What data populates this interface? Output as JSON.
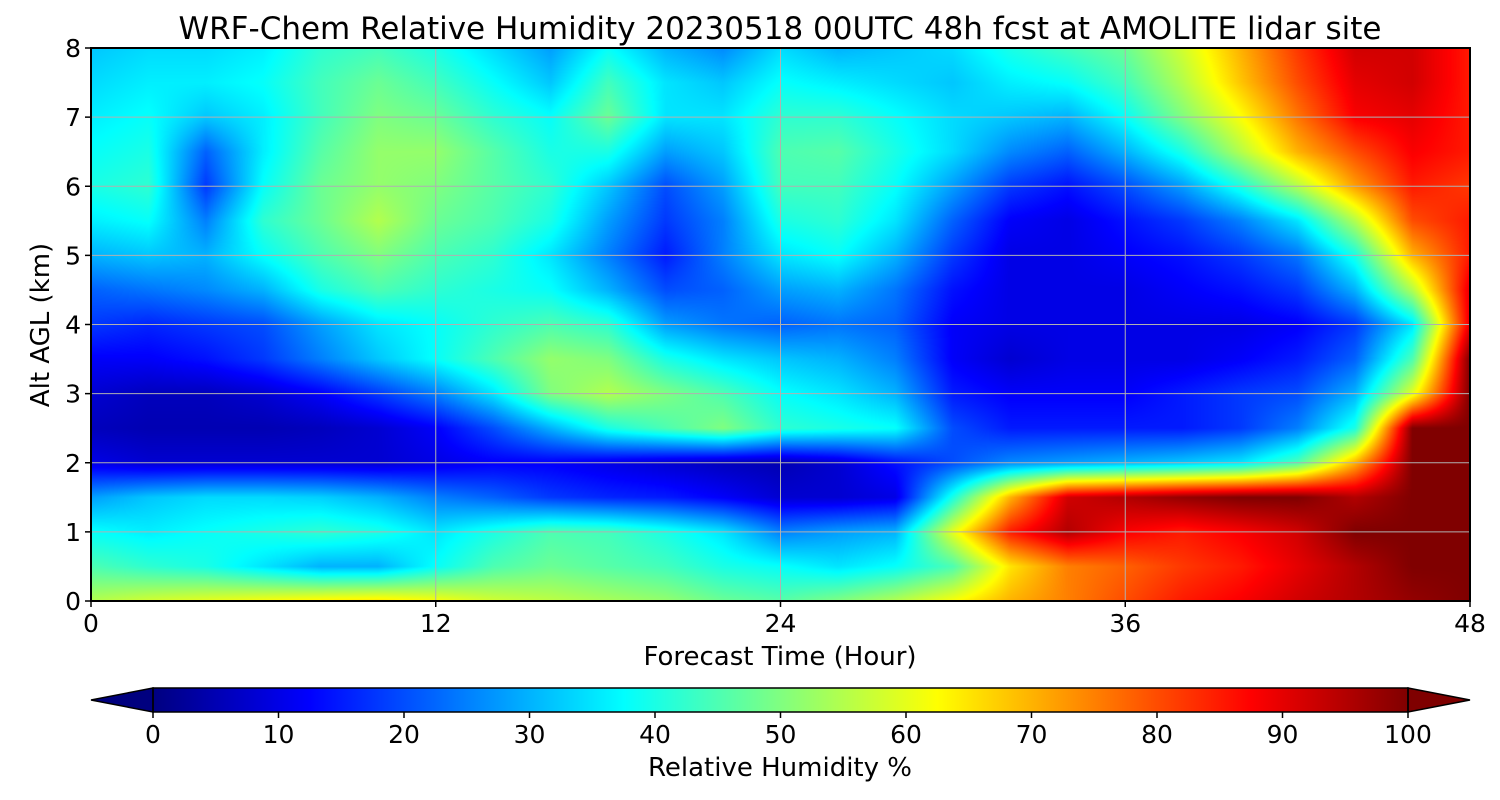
{
  "chart_data": {
    "type": "heatmap",
    "title": "WRF-Chem Relative Humidity 20230518 00UTC 48h fcst at AMOLITE lidar site",
    "xlabel": "Forecast Time (Hour)",
    "ylabel": "Alt AGL (km)",
    "xlim": [
      0,
      48
    ],
    "ylim": [
      0,
      8
    ],
    "x_ticks": [
      0,
      12,
      24,
      36,
      48
    ],
    "y_ticks": [
      0,
      1,
      2,
      3,
      4,
      5,
      6,
      7,
      8
    ],
    "grid": true,
    "colormap": "jet",
    "colorbar": {
      "label": "Relative Humidity %",
      "ticks": [
        0,
        10,
        20,
        30,
        40,
        50,
        60,
        70,
        80,
        90,
        100
      ],
      "range": [
        0,
        100
      ],
      "extend": "both",
      "orientation": "horizontal"
    },
    "x": [
      0,
      2,
      4,
      6,
      8,
      10,
      12,
      14,
      16,
      18,
      20,
      22,
      24,
      26,
      28,
      30,
      32,
      34,
      36,
      38,
      40,
      42,
      44,
      46,
      48
    ],
    "y": [
      0,
      0.5,
      1,
      1.5,
      2,
      2.5,
      3,
      3.5,
      4,
      4.5,
      5,
      5.5,
      6,
      6.5,
      7,
      7.5,
      8
    ],
    "z": [
      [
        55,
        58,
        60,
        62,
        64,
        65,
        62,
        58,
        56,
        54,
        52,
        48,
        46,
        50,
        55,
        62,
        70,
        75,
        80,
        85,
        88,
        92,
        95,
        98,
        100
      ],
      [
        45,
        42,
        40,
        35,
        30,
        30,
        38,
        45,
        48,
        46,
        44,
        40,
        38,
        35,
        38,
        45,
        65,
        75,
        78,
        82,
        85,
        90,
        95,
        100,
        100
      ],
      [
        38,
        36,
        38,
        40,
        42,
        40,
        35,
        40,
        45,
        44,
        40,
        35,
        25,
        28,
        30,
        60,
        85,
        95,
        88,
        85,
        88,
        92,
        100,
        100,
        100
      ],
      [
        28,
        32,
        34,
        34,
        33,
        30,
        25,
        22,
        18,
        16,
        15,
        12,
        8,
        8,
        10,
        40,
        70,
        92,
        95,
        98,
        100,
        100,
        95,
        100,
        100
      ],
      [
        10,
        8,
        8,
        8,
        8,
        8,
        10,
        12,
        12,
        10,
        8,
        6,
        5,
        8,
        14,
        20,
        26,
        28,
        30,
        32,
        35,
        45,
        70,
        100,
        100
      ],
      [
        6,
        5,
        5,
        5,
        6,
        8,
        12,
        20,
        30,
        40,
        45,
        50,
        42,
        40,
        38,
        20,
        15,
        15,
        15,
        15,
        18,
        25,
        40,
        100,
        100
      ],
      [
        8,
        6,
        6,
        8,
        12,
        18,
        25,
        35,
        50,
        55,
        50,
        45,
        38,
        35,
        30,
        15,
        12,
        12,
        12,
        15,
        18,
        20,
        30,
        60,
        100
      ],
      [
        12,
        12,
        14,
        18,
        25,
        32,
        38,
        45,
        52,
        50,
        40,
        35,
        32,
        30,
        25,
        12,
        8,
        10,
        10,
        10,
        12,
        15,
        22,
        45,
        100
      ],
      [
        18,
        16,
        18,
        20,
        28,
        35,
        38,
        42,
        45,
        42,
        28,
        24,
        22,
        24,
        22,
        12,
        10,
        10,
        10,
        10,
        10,
        12,
        18,
        35,
        90
      ],
      [
        22,
        24,
        26,
        30,
        40,
        45,
        42,
        40,
        38,
        30,
        20,
        22,
        28,
        30,
        24,
        14,
        10,
        10,
        10,
        12,
        14,
        18,
        30,
        55,
        90
      ],
      [
        30,
        32,
        30,
        38,
        45,
        50,
        45,
        42,
        35,
        25,
        15,
        25,
        35,
        38,
        30,
        18,
        10,
        10,
        12,
        14,
        18,
        24,
        40,
        70,
        85
      ],
      [
        36,
        38,
        25,
        42,
        48,
        55,
        48,
        45,
        40,
        28,
        18,
        25,
        40,
        42,
        35,
        22,
        12,
        10,
        14,
        18,
        25,
        35,
        55,
        80,
        85
      ],
      [
        40,
        42,
        18,
        38,
        48,
        52,
        50,
        46,
        42,
        32,
        20,
        28,
        44,
        44,
        38,
        28,
        18,
        14,
        20,
        28,
        40,
        55,
        72,
        85,
        82
      ],
      [
        38,
        40,
        22,
        36,
        46,
        52,
        52,
        46,
        40,
        40,
        28,
        32,
        45,
        46,
        40,
        34,
        26,
        22,
        30,
        40,
        55,
        70,
        80,
        88,
        85
      ],
      [
        36,
        38,
        32,
        36,
        44,
        50,
        48,
        42,
        38,
        48,
        35,
        35,
        42,
        42,
        38,
        34,
        32,
        30,
        38,
        50,
        62,
        76,
        88,
        90,
        85
      ],
      [
        34,
        36,
        36,
        38,
        44,
        48,
        44,
        38,
        32,
        44,
        35,
        32,
        38,
        36,
        34,
        32,
        36,
        38,
        44,
        55,
        68,
        80,
        90,
        92,
        85
      ],
      [
        32,
        34,
        34,
        36,
        42,
        44,
        40,
        34,
        28,
        38,
        30,
        26,
        34,
        30,
        32,
        34,
        40,
        44,
        48,
        58,
        70,
        82,
        92,
        92,
        85
      ]
    ]
  }
}
